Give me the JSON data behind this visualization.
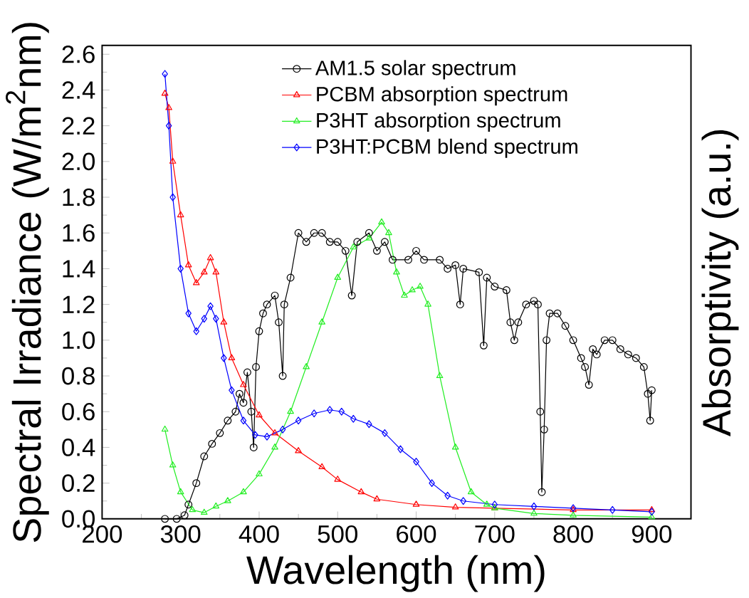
{
  "chart_data": {
    "type": "line",
    "xlabel": "Wavelength (nm)",
    "ylabel": "Spectral Irradiance (W/m$^{2}$nm)",
    "y2label": "Absorptivity (a.u.)",
    "xlim": [
      200,
      950
    ],
    "xticks": [
      200,
      300,
      400,
      500,
      600,
      700,
      800,
      900
    ],
    "ylim": [
      0,
      2.65
    ],
    "yticks": [
      {
        "value": 0,
        "label": "0.0"
      },
      {
        "value": 0.2,
        "label": "0.2"
      },
      {
        "value": 0.4,
        "label": "0.4"
      },
      {
        "value": 0.6,
        "label": "0.6"
      },
      {
        "value": 0.8,
        "label": "0.8"
      },
      {
        "value": 1.0,
        "label": "1.0"
      },
      {
        "value": 1.2,
        "label": "1.2"
      },
      {
        "value": 1.4,
        "label": "1.4"
      },
      {
        "value": 1.6,
        "label": "1.6"
      },
      {
        "value": 1.8,
        "label": "1.8"
      },
      {
        "value": 2.0,
        "label": "2.0"
      },
      {
        "value": 2.2,
        "label": "2.2"
      },
      {
        "value": 2.4,
        "label": "2.4"
      },
      {
        "value": 2.6,
        "label": "2.6"
      }
    ],
    "legend": "top",
    "grid": false,
    "line_style": "solid",
    "series": [
      {
        "name": "AM1.5 solar spectrum",
        "color": "#000000",
        "marker": "circle",
        "x": [
          280,
          295,
          305,
          310,
          320,
          330,
          340,
          350,
          360,
          370,
          375,
          380,
          385,
          390,
          393,
          396,
          400,
          405,
          410,
          420,
          425,
          430,
          432,
          440,
          450,
          460,
          470,
          480,
          490,
          500,
          510,
          518,
          525,
          540,
          550,
          560,
          570,
          590,
          600,
          610,
          630,
          640,
          650,
          656,
          660,
          680,
          686,
          690,
          700,
          715,
          720,
          725,
          730,
          740,
          750,
          755,
          758,
          760,
          763,
          766,
          770,
          780,
          790,
          800,
          810,
          815,
          820,
          825,
          830,
          840,
          850,
          860,
          870,
          880,
          890,
          895,
          898,
          900
        ],
        "values": [
          0,
          0,
          0.02,
          0.08,
          0.2,
          0.35,
          0.42,
          0.48,
          0.55,
          0.6,
          0.7,
          0.65,
          0.82,
          0.6,
          0.4,
          0.85,
          1.05,
          1.15,
          1.2,
          1.25,
          1.1,
          0.8,
          1.2,
          1.35,
          1.6,
          1.55,
          1.6,
          1.6,
          1.55,
          1.55,
          1.5,
          1.25,
          1.55,
          1.6,
          1.5,
          1.55,
          1.45,
          1.45,
          1.5,
          1.45,
          1.45,
          1.4,
          1.42,
          1.2,
          1.4,
          1.38,
          0.97,
          1.35,
          1.3,
          1.28,
          1.1,
          1.0,
          1.1,
          1.2,
          1.22,
          1.2,
          0.6,
          0.15,
          0.5,
          1.0,
          1.15,
          1.15,
          1.08,
          1.0,
          0.9,
          0.85,
          0.75,
          0.95,
          0.92,
          1.0,
          1.0,
          0.95,
          0.92,
          0.9,
          0.85,
          0.7,
          0.55,
          0.72
        ]
      },
      {
        "name": "PCBM absorption spectrum",
        "color": "#ff0000",
        "marker": "triangle",
        "x": [
          280,
          285,
          290,
          300,
          310,
          320,
          330,
          338,
          345,
          355,
          365,
          380,
          400,
          420,
          450,
          480,
          500,
          530,
          550,
          600,
          650,
          700,
          800,
          900
        ],
        "values": [
          2.38,
          2.3,
          2.0,
          1.7,
          1.42,
          1.32,
          1.38,
          1.46,
          1.38,
          1.1,
          0.9,
          0.75,
          0.58,
          0.48,
          0.38,
          0.29,
          0.22,
          0.15,
          0.11,
          0.08,
          0.065,
          0.06,
          0.05,
          0.05
        ]
      },
      {
        "name": "P3HT absorption spectrum",
        "color": "#22ee22",
        "marker": "triangle",
        "x": [
          280,
          290,
          300,
          315,
          330,
          345,
          360,
          380,
          400,
          420,
          440,
          460,
          480,
          500,
          520,
          540,
          556,
          565,
          575,
          585,
          595,
          605,
          615,
          630,
          650,
          670,
          690,
          700,
          750,
          800,
          900
        ],
        "values": [
          0.5,
          0.3,
          0.15,
          0.05,
          0.035,
          0.07,
          0.1,
          0.15,
          0.25,
          0.4,
          0.6,
          0.85,
          1.1,
          1.35,
          1.52,
          1.57,
          1.66,
          1.6,
          1.38,
          1.25,
          1.28,
          1.3,
          1.2,
          0.8,
          0.4,
          0.15,
          0.08,
          0.06,
          0.03,
          0.02,
          0.01
        ]
      },
      {
        "name": "P3HT:PCBM blend spectrum",
        "color": "#0000ff",
        "marker": "diamond",
        "x": [
          280,
          285,
          290,
          300,
          310,
          320,
          330,
          338,
          345,
          355,
          365,
          380,
          395,
          410,
          430,
          450,
          470,
          490,
          505,
          520,
          540,
          560,
          580,
          600,
          620,
          640,
          660,
          700,
          750,
          800,
          850,
          900
        ],
        "values": [
          2.49,
          2.2,
          1.8,
          1.4,
          1.15,
          1.05,
          1.12,
          1.19,
          1.12,
          0.9,
          0.72,
          0.55,
          0.47,
          0.46,
          0.5,
          0.55,
          0.59,
          0.61,
          0.6,
          0.56,
          0.53,
          0.48,
          0.39,
          0.32,
          0.2,
          0.13,
          0.1,
          0.08,
          0.07,
          0.06,
          0.05,
          0.04
        ]
      }
    ]
  }
}
